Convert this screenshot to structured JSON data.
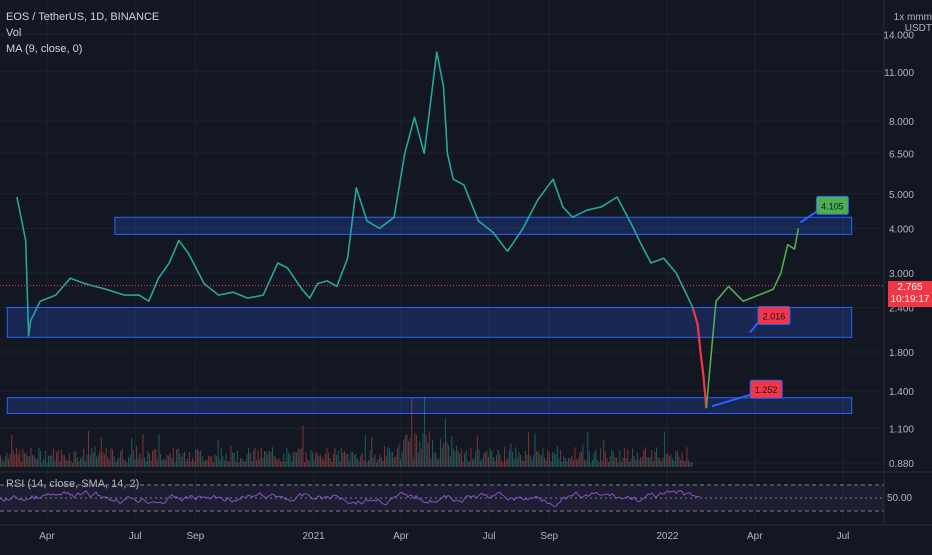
{
  "header": {
    "symbol_line": "EOS / TetherUS, 1D, BINANCE",
    "vol_label": "Vol",
    "ma_label": "MA (9, close, 0)",
    "currency_top": "1x mmm",
    "currency": "USDT"
  },
  "rsi": {
    "label": "RSI (14, close, SMA, 14, 2)",
    "tick": "50.00"
  },
  "last_price": {
    "value": "2.765",
    "countdown": "10:19:17"
  },
  "chart_data": {
    "type": "line",
    "title": "EOS / TetherUS, 1D, BINANCE",
    "y_scale": "log",
    "ylim": [
      0.84,
      17.5
    ],
    "y_ticks": [
      "14.000",
      "11.000",
      "8.000",
      "6.500",
      "5.000",
      "4.000",
      "3.000",
      "2.400",
      "1.800",
      "1.400",
      "1.100",
      "0.880"
    ],
    "x_ticks": [
      "Apr",
      "Jul",
      "Sep",
      "2021",
      "Apr",
      "Jul",
      "Sep",
      "2022",
      "Apr",
      "Jul"
    ],
    "series": [
      {
        "color": "#26a69a",
        "points": [
          [
            "2020-03-01",
            4.9
          ],
          [
            "2020-03-10",
            3.7
          ],
          [
            "2020-03-13",
            2.0
          ],
          [
            "2020-03-15",
            2.2
          ],
          [
            "2020-03-25",
            2.5
          ],
          [
            "2020-04-10",
            2.6
          ],
          [
            "2020-04-25",
            2.9
          ],
          [
            "2020-05-10",
            2.8
          ],
          [
            "2020-06-01",
            2.7
          ],
          [
            "2020-06-20",
            2.6
          ],
          [
            "2020-07-05",
            2.6
          ],
          [
            "2020-07-15",
            2.5
          ],
          [
            "2020-07-25",
            2.9
          ],
          [
            "2020-08-05",
            3.2
          ],
          [
            "2020-08-15",
            3.7
          ],
          [
            "2020-08-25",
            3.4
          ],
          [
            "2020-09-10",
            2.8
          ],
          [
            "2020-09-25",
            2.6
          ],
          [
            "2020-10-10",
            2.65
          ],
          [
            "2020-10-25",
            2.55
          ],
          [
            "2020-11-10",
            2.6
          ],
          [
            "2020-11-25",
            3.2
          ],
          [
            "2020-12-05",
            3.1
          ],
          [
            "2020-12-20",
            2.7
          ],
          [
            "2020-12-28",
            2.55
          ],
          [
            "2021-01-05",
            2.8
          ],
          [
            "2021-01-15",
            2.85
          ],
          [
            "2021-01-25",
            2.75
          ],
          [
            "2021-02-05",
            3.3
          ],
          [
            "2021-02-14",
            5.2
          ],
          [
            "2021-02-25",
            4.2
          ],
          [
            "2021-03-10",
            4.0
          ],
          [
            "2021-03-25",
            4.3
          ],
          [
            "2021-04-05",
            6.5
          ],
          [
            "2021-04-15",
            8.2
          ],
          [
            "2021-04-25",
            6.5
          ],
          [
            "2021-05-08",
            12.5
          ],
          [
            "2021-05-15",
            10.0
          ],
          [
            "2021-05-19",
            6.5
          ],
          [
            "2021-05-25",
            5.5
          ],
          [
            "2021-06-05",
            5.3
          ],
          [
            "2021-06-20",
            4.2
          ],
          [
            "2021-07-05",
            3.9
          ],
          [
            "2021-07-20",
            3.45
          ],
          [
            "2021-08-05",
            4.0
          ],
          [
            "2021-08-20",
            4.8
          ],
          [
            "2021-09-05",
            5.5
          ],
          [
            "2021-09-15",
            4.6
          ],
          [
            "2021-09-25",
            4.3
          ],
          [
            "2021-10-10",
            4.5
          ],
          [
            "2021-10-25",
            4.6
          ],
          [
            "2021-11-10",
            4.9
          ],
          [
            "2021-11-25",
            4.1
          ],
          [
            "2021-12-05",
            3.6
          ],
          [
            "2021-12-15",
            3.2
          ],
          [
            "2021-12-28",
            3.3
          ],
          [
            "2022-01-10",
            3.0
          ],
          [
            "2022-01-21",
            2.6
          ],
          [
            "2022-01-27",
            2.4
          ]
        ]
      },
      {
        "color": "#f23645",
        "points": [
          [
            "2022-01-27",
            2.4
          ],
          [
            "2022-02-01",
            2.15
          ],
          [
            "2022-02-04",
            1.8
          ],
          [
            "2022-02-07",
            1.55
          ],
          [
            "2022-02-10",
            1.252
          ]
        ]
      },
      {
        "color": "#4caf50",
        "points": [
          [
            "2022-02-10",
            1.252
          ],
          [
            "2022-02-20",
            2.5
          ],
          [
            "2022-03-05",
            2.75
          ],
          [
            "2022-03-20",
            2.5
          ],
          [
            "2022-04-05",
            2.6
          ],
          [
            "2022-04-20",
            2.7
          ],
          [
            "2022-04-28",
            3.0
          ],
          [
            "2022-05-05",
            3.6
          ],
          [
            "2022-05-12",
            3.5
          ],
          [
            "2022-05-16",
            4.0
          ]
        ]
      }
    ],
    "zones": [
      {
        "start": "2020-06-10",
        "end": "2022-07-10",
        "low": 3.85,
        "high": 4.3
      },
      {
        "start": "2020-02-20",
        "end": "2022-07-10",
        "low": 1.98,
        "high": 2.4
      },
      {
        "start": "2020-02-20",
        "end": "2022-07-10",
        "low": 1.21,
        "high": 1.34
      }
    ],
    "annotations": [
      {
        "label": "4.105",
        "price": 4.105,
        "color": "#4caf50"
      },
      {
        "label": "2.016",
        "price": 2.016,
        "color": "#f23645"
      },
      {
        "label": "1.252",
        "price": 1.252,
        "color": "#f23645"
      }
    ],
    "last_price": 2.765
  }
}
